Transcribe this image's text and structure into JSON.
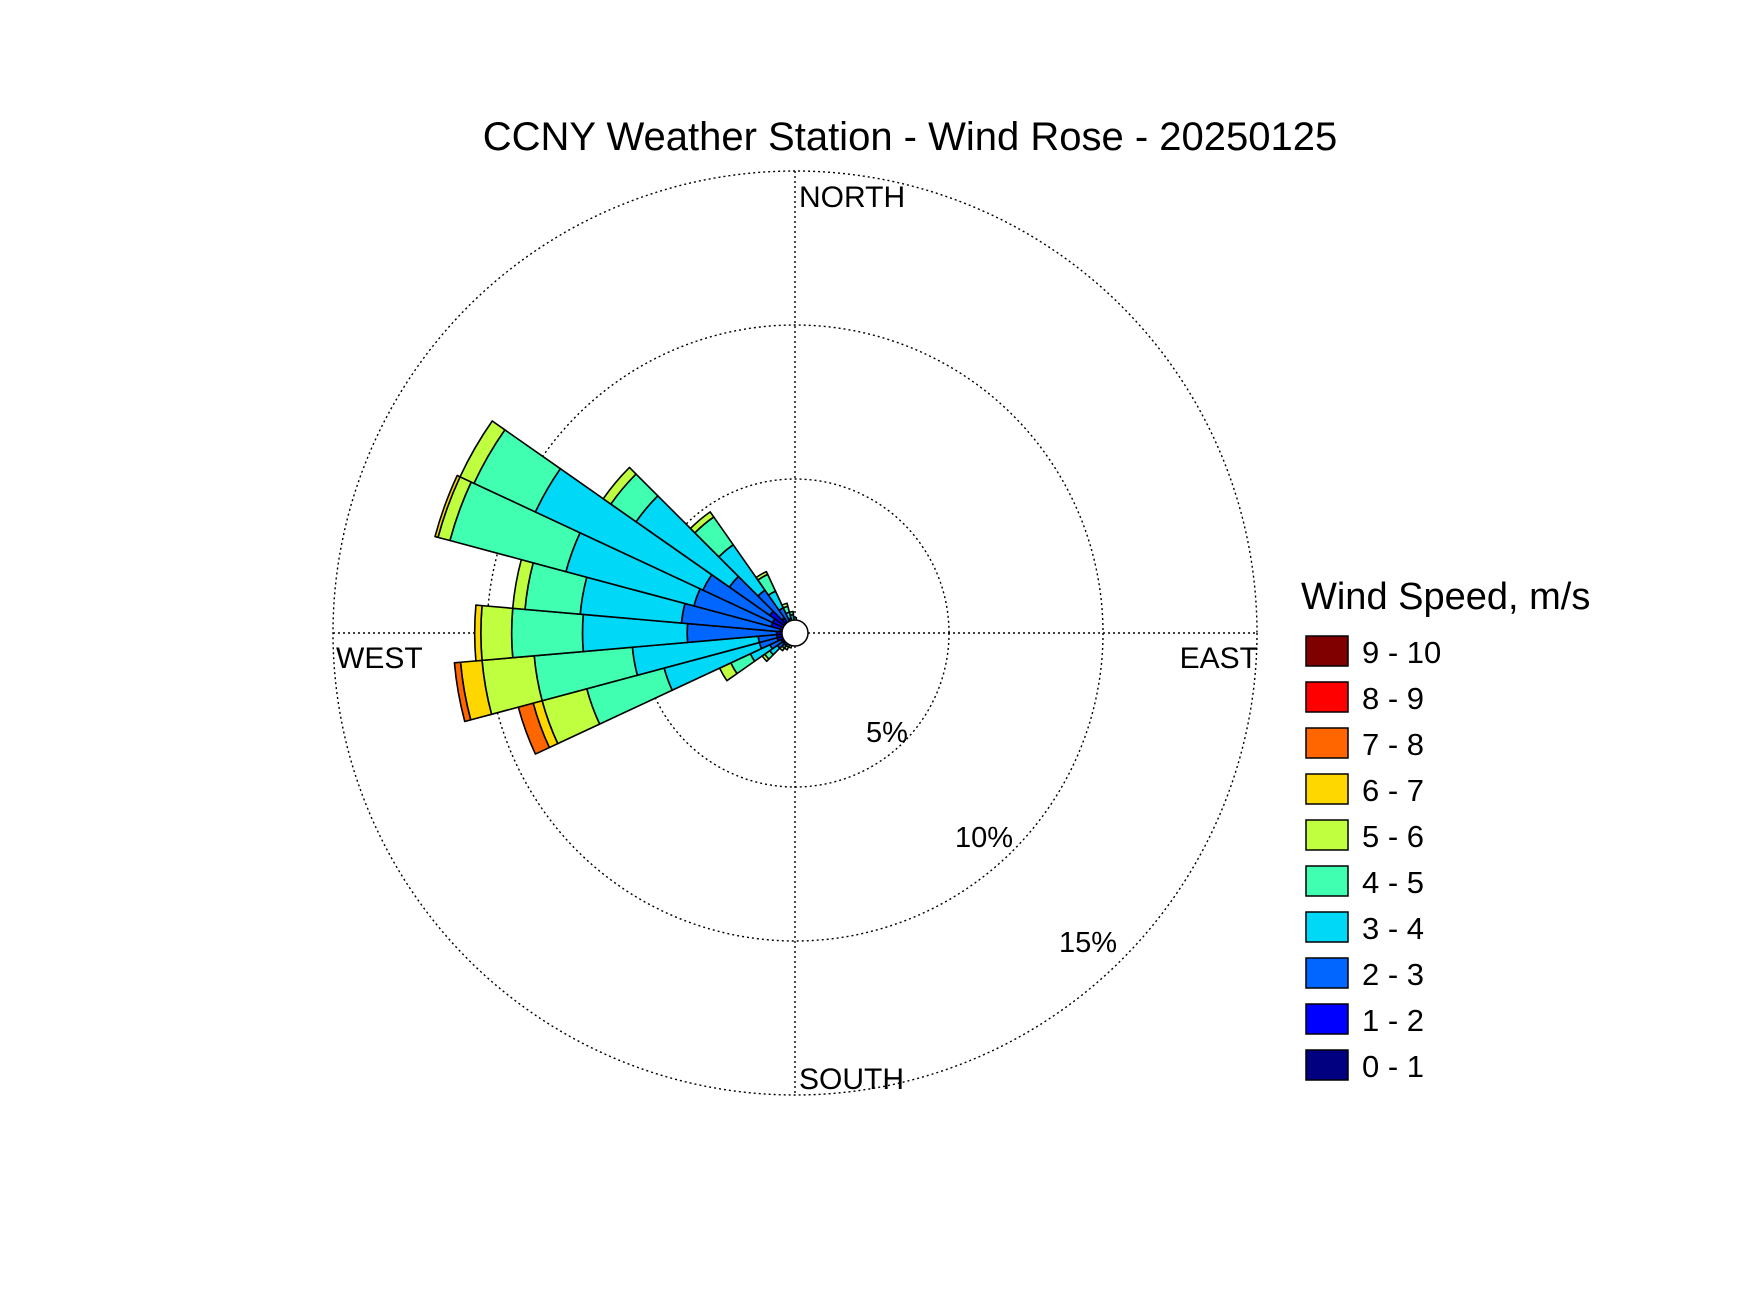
{
  "chart_data": {
    "type": "windrose",
    "title": "CCNY Weather Station - Wind Rose - 20250125",
    "directions": {
      "north": "NORTH",
      "east": "EAST",
      "south": "SOUTH",
      "west": "WEST"
    },
    "radial_axis": {
      "unit": "%",
      "max": 15,
      "rings": [
        5,
        10,
        15
      ],
      "ring_labels": [
        "5%",
        "10%",
        "15%"
      ]
    },
    "grid": true,
    "legend": {
      "title": "Wind Speed, m/s",
      "placement": "right",
      "bins": [
        {
          "label": "9 - 10",
          "color": "#800000"
        },
        {
          "label": "8 - 9",
          "color": "#ff0000"
        },
        {
          "label": "7 - 8",
          "color": "#ff6600"
        },
        {
          "label": "6 - 7",
          "color": "#ffd700"
        },
        {
          "label": "5 - 6",
          "color": "#bfff40"
        },
        {
          "label": "4 - 5",
          "color": "#40ffb0"
        },
        {
          "label": "3 - 4",
          "color": "#00d8f8"
        },
        {
          "label": "2 - 3",
          "color": "#0066ff"
        },
        {
          "label": "1 - 2",
          "color": "#0000ff"
        },
        {
          "label": "0 - 1",
          "color": "#000080"
        }
      ]
    },
    "bin_colors_low_to_high": [
      "#000080",
      "#0000ff",
      "#0066ff",
      "#00d8f8",
      "#40ffb0",
      "#bfff40",
      "#ffd700",
      "#ff6600",
      "#ff0000",
      "#800000"
    ],
    "sector_width_deg": 10,
    "sectors": [
      {
        "dir": 200,
        "cum": [
          0.2,
          0.3,
          0.3,
          0.3,
          0.4,
          0.5
        ]
      },
      {
        "dir": 210,
        "cum": [
          0.2,
          0.3,
          0.4,
          0.4,
          0.5,
          0.6
        ]
      },
      {
        "dir": 220,
        "cum": [
          0.2,
          0.4,
          0.5,
          0.6,
          0.6,
          0.7
        ]
      },
      {
        "dir": 230,
        "cum": [
          0.2,
          0.5,
          0.7,
          1.0,
          1.2,
          1.3
        ]
      },
      {
        "dir": 240,
        "cum": [
          0.2,
          0.5,
          0.9,
          1.6,
          2.3,
          2.7
        ]
      },
      {
        "dir": 250,
        "cum": [
          0.2,
          0.6,
          1.2,
          4.4,
          7.0,
          8.5,
          8.8,
          9.3
        ]
      },
      {
        "dir": 260,
        "cum": [
          0.2,
          0.6,
          1.2,
          5.3,
          8.5,
          10.2,
          10.9,
          11.1
        ]
      },
      {
        "dir": 270,
        "cum": [
          0.2,
          0.6,
          3.5,
          6.9,
          9.2,
          10.2,
          10.4
        ]
      },
      {
        "dir": 280,
        "cum": [
          0.2,
          0.5,
          3.7,
          7.0,
          8.8,
          9.2
        ]
      },
      {
        "dir": 290,
        "cum": [
          0.2,
          0.8,
          3.4,
          7.7,
          11.6,
          12.0,
          12.1
        ]
      },
      {
        "dir": 300,
        "cum": [
          0.2,
          0.8,
          3.3,
          9.3,
          11.5,
          12.0
        ]
      },
      {
        "dir": 310,
        "cum": [
          0.2,
          1.0,
          2.6,
          6.3,
          7.3,
          7.6
        ]
      },
      {
        "dir": 320,
        "cum": [
          0.2,
          0.6,
          1.7,
          3.5,
          4.6,
          4.8
        ]
      },
      {
        "dir": 330,
        "cum": [
          0.2,
          0.4,
          0.9,
          1.5,
          2.1,
          2.2
        ]
      },
      {
        "dir": 340,
        "cum": [
          0.2,
          0.3,
          0.5,
          0.7,
          0.9,
          1.0
        ]
      },
      {
        "dir": 350,
        "cum": [
          0.2,
          0.3,
          0.4,
          0.6,
          0.7
        ]
      },
      {
        "dir": 0,
        "cum": [
          0.2,
          0.3,
          0.3,
          0.4,
          0.5
        ]
      },
      {
        "dir": 10,
        "cum": [
          0.2,
          0.2,
          0.3,
          0.3,
          0.3
        ]
      },
      {
        "dir": 20,
        "cum": [
          0.2,
          0.2,
          0.2,
          0.3
        ]
      },
      {
        "dir": 30,
        "cum": [
          0.2,
          0.2,
          0.2,
          0.3
        ]
      },
      {
        "dir": 40,
        "cum": [
          0.2,
          0.2,
          0.2,
          0.3
        ]
      },
      {
        "dir": 50,
        "cum": [
          0.2,
          0.2,
          0.2,
          0.3
        ]
      },
      {
        "dir": 60,
        "cum": [
          0.2,
          0.2,
          0.2,
          0.3
        ]
      },
      {
        "dir": 70,
        "cum": [
          0.2,
          0.2,
          0.2,
          0.3
        ]
      },
      {
        "dir": 80,
        "cum": [
          0.2,
          0.2,
          0.2,
          0.3
        ]
      },
      {
        "dir": 90,
        "cum": [
          0.2,
          0.2,
          0.2,
          0.3
        ]
      },
      {
        "dir": 100,
        "cum": [
          0.2,
          0.2,
          0.2,
          0.3
        ]
      },
      {
        "dir": 110,
        "cum": [
          0.2,
          0.2,
          0.2,
          0.3
        ]
      },
      {
        "dir": 120,
        "cum": [
          0.2,
          0.2,
          0.2,
          0.3
        ]
      },
      {
        "dir": 130,
        "cum": [
          0.2,
          0.2,
          0.2,
          0.3
        ]
      },
      {
        "dir": 140,
        "cum": [
          0.2,
          0.2,
          0.2,
          0.3
        ]
      },
      {
        "dir": 150,
        "cum": [
          0.2,
          0.2,
          0.2,
          0.3
        ]
      },
      {
        "dir": 160,
        "cum": [
          0.2,
          0.2,
          0.3,
          0.3
        ]
      },
      {
        "dir": 170,
        "cum": [
          0.2,
          0.2,
          0.3,
          0.3
        ]
      },
      {
        "dir": 180,
        "cum": [
          0.2,
          0.3,
          0.3,
          0.4
        ]
      },
      {
        "dir": 190,
        "cum": [
          0.2,
          0.3,
          0.3,
          0.4
        ]
      }
    ]
  }
}
